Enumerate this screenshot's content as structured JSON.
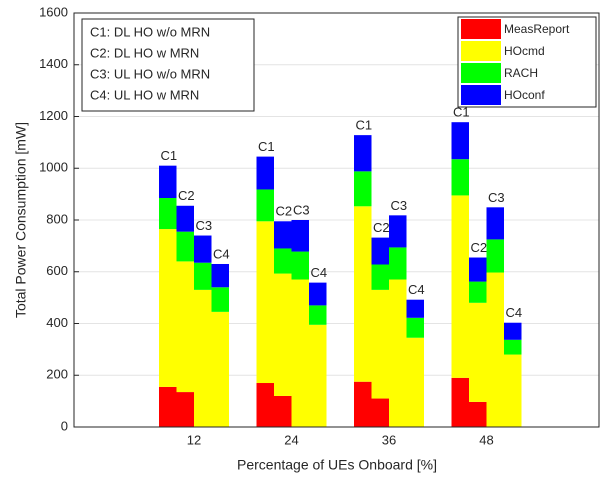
{
  "chart_data": {
    "type": "grouped_stacked_bar",
    "xlabel": "Percentage of UEs Onboard [%]",
    "ylabel": "Total Power Consumption [mW]",
    "categories": [
      "12",
      "24",
      "36",
      "48"
    ],
    "bar_labels": [
      "C1",
      "C2",
      "C3",
      "C4"
    ],
    "annotation": [
      "C1: DL HO w/o MRN",
      "C2: DL HO w MRN",
      "C3: UL HO w/o MRN",
      "C4: UL HO w MRN"
    ],
    "ylim": [
      0,
      1600
    ],
    "yticks": [
      0,
      200,
      400,
      600,
      800,
      1000,
      1200,
      1400,
      1600
    ],
    "grid": true,
    "legend": "upper right",
    "series": [
      {
        "name": "MeasReport",
        "color": "#ff0000",
        "values": [
          [
            155,
            135,
            0,
            0
          ],
          [
            170,
            120,
            0,
            0
          ],
          [
            175,
            110,
            0,
            0
          ],
          [
            190,
            97,
            0,
            0
          ]
        ]
      },
      {
        "name": "HOcmd",
        "color": "#ffff00",
        "values": [
          [
            610,
            505,
            530,
            445
          ],
          [
            625,
            473,
            570,
            395
          ],
          [
            678,
            420,
            570,
            345
          ],
          [
            705,
            383,
            597,
            280
          ]
        ]
      },
      {
        "name": "RACH",
        "color": "#00ff00",
        "values": [
          [
            120,
            115,
            105,
            95
          ],
          [
            123,
            97,
            108,
            75
          ],
          [
            135,
            98,
            124,
            77
          ],
          [
            140,
            82,
            128,
            57
          ]
        ]
      },
      {
        "name": "HOconf",
        "color": "#0000ff",
        "values": [
          [
            125,
            100,
            105,
            90
          ],
          [
            127,
            105,
            122,
            88
          ],
          [
            140,
            104,
            124,
            70
          ],
          [
            143,
            93,
            124,
            66
          ]
        ]
      }
    ]
  }
}
